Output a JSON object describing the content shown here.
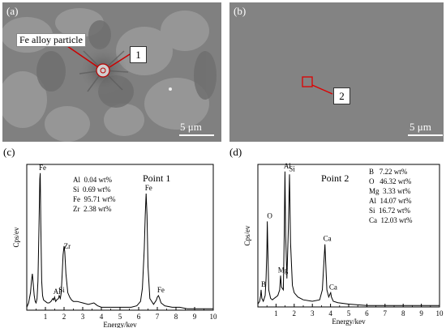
{
  "panel_a": {
    "label": "(a)",
    "annotation": "Fe alloy particle",
    "marker": "1",
    "scale": "5 μm"
  },
  "panel_b": {
    "label": "(b)",
    "marker": "2",
    "scale": "5 μm"
  },
  "panel_c": {
    "label": "(c)"
  },
  "panel_d": {
    "label": "(d)"
  },
  "chart_data": [
    {
      "type": "line",
      "title": "Point 1",
      "xlabel": "Energy/kev",
      "ylabel": "Cps/ev",
      "xlim": [
        0,
        10
      ],
      "xticks": [
        "1",
        "2",
        "3",
        "4",
        "5",
        "6",
        "7",
        "8",
        "9",
        "10"
      ],
      "composition": [
        "Al  0.04 wt%",
        "Si  0.69 wt%",
        "Fe  95.71 wt%",
        "Zr  2.38 wt%"
      ],
      "peak_labels": [
        {
          "label": "Fe",
          "x": 0.72
        },
        {
          "label": "Al",
          "x": 1.49
        },
        {
          "label": "Si",
          "x": 1.74
        },
        {
          "label": "Zr",
          "x": 2.04
        },
        {
          "label": "Fe",
          "x": 6.4
        },
        {
          "label": "Fe",
          "x": 7.06
        }
      ],
      "x": [
        0,
        0.1,
        0.2,
        0.25,
        0.3,
        0.35,
        0.4,
        0.45,
        0.5,
        0.55,
        0.6,
        0.65,
        0.7,
        0.72,
        0.75,
        0.8,
        0.85,
        0.9,
        1.0,
        1.1,
        1.2,
        1.3,
        1.4,
        1.45,
        1.49,
        1.55,
        1.6,
        1.7,
        1.74,
        1.8,
        1.85,
        1.9,
        1.95,
        2.0,
        2.04,
        2.1,
        2.2,
        2.3,
        2.4,
        2.5,
        2.7,
        3.0,
        3.3,
        3.6,
        3.7,
        3.8,
        4.0,
        4.4,
        4.8,
        5.2,
        5.6,
        5.9,
        6.1,
        6.2,
        6.3,
        6.35,
        6.4,
        6.45,
        6.5,
        6.6,
        6.8,
        6.95,
        7.0,
        7.06,
        7.12,
        7.2,
        7.4,
        7.8,
        8.2,
        8.6,
        9.0,
        9.5,
        10.0
      ],
      "y": [
        0.02,
        0.05,
        0.12,
        0.2,
        0.25,
        0.18,
        0.1,
        0.06,
        0.05,
        0.08,
        0.2,
        0.55,
        0.9,
        0.94,
        0.6,
        0.2,
        0.1,
        0.07,
        0.06,
        0.05,
        0.05,
        0.06,
        0.08,
        0.07,
        0.09,
        0.06,
        0.07,
        0.08,
        0.1,
        0.08,
        0.12,
        0.25,
        0.38,
        0.44,
        0.4,
        0.25,
        0.12,
        0.09,
        0.07,
        0.06,
        0.06,
        0.05,
        0.04,
        0.05,
        0.04,
        0.03,
        0.02,
        0.02,
        0.02,
        0.02,
        0.02,
        0.03,
        0.06,
        0.15,
        0.42,
        0.65,
        0.8,
        0.65,
        0.3,
        0.08,
        0.04,
        0.07,
        0.09,
        0.1,
        0.08,
        0.05,
        0.03,
        0.02,
        0.02,
        0.01,
        0.01,
        0.01,
        0.01
      ]
    },
    {
      "type": "line",
      "title": "Point 2",
      "xlabel": "Energy/kev",
      "ylabel": "Cps/ev",
      "xlim": [
        0,
        10
      ],
      "xticks": [
        "1",
        "2",
        "3",
        "4",
        "5",
        "6",
        "7",
        "8",
        "9",
        "10"
      ],
      "composition": [
        "B   7.22 wt%",
        "O   46.32 wt%",
        "Mg  3.33 wt%",
        "Al  14.07 wt%",
        "Si  16.72 wt%",
        "Ca  12.03 wt%"
      ],
      "peak_labels": [
        {
          "label": "B",
          "x": 0.18
        },
        {
          "label": "O",
          "x": 0.52
        },
        {
          "label": "Mg",
          "x": 1.25
        },
        {
          "label": "Al",
          "x": 1.49
        },
        {
          "label": "Si",
          "x": 1.74
        },
        {
          "label": "Ca",
          "x": 3.69
        },
        {
          "label": "Ca",
          "x": 4.01
        }
      ],
      "x": [
        0,
        0.1,
        0.15,
        0.18,
        0.22,
        0.3,
        0.4,
        0.45,
        0.5,
        0.52,
        0.55,
        0.6,
        0.7,
        0.8,
        0.9,
        1.0,
        1.1,
        1.2,
        1.25,
        1.3,
        1.4,
        1.45,
        1.49,
        1.53,
        1.6,
        1.68,
        1.74,
        1.8,
        1.9,
        2.0,
        2.2,
        2.5,
        3.0,
        3.4,
        3.55,
        3.65,
        3.69,
        3.73,
        3.8,
        3.9,
        3.97,
        4.01,
        4.05,
        4.15,
        4.4,
        5.0,
        6.0,
        7.0,
        8.0,
        9.0,
        10.0
      ],
      "y": [
        0.02,
        0.04,
        0.08,
        0.12,
        0.06,
        0.04,
        0.08,
        0.2,
        0.42,
        0.6,
        0.4,
        0.12,
        0.06,
        0.05,
        0.06,
        0.07,
        0.08,
        0.12,
        0.22,
        0.14,
        0.12,
        0.5,
        0.95,
        0.5,
        0.2,
        0.55,
        0.93,
        0.45,
        0.15,
        0.1,
        0.07,
        0.05,
        0.04,
        0.05,
        0.12,
        0.35,
        0.44,
        0.32,
        0.12,
        0.07,
        0.09,
        0.1,
        0.07,
        0.04,
        0.03,
        0.02,
        0.01,
        0.01,
        0.01,
        0.01,
        0.01
      ]
    }
  ]
}
